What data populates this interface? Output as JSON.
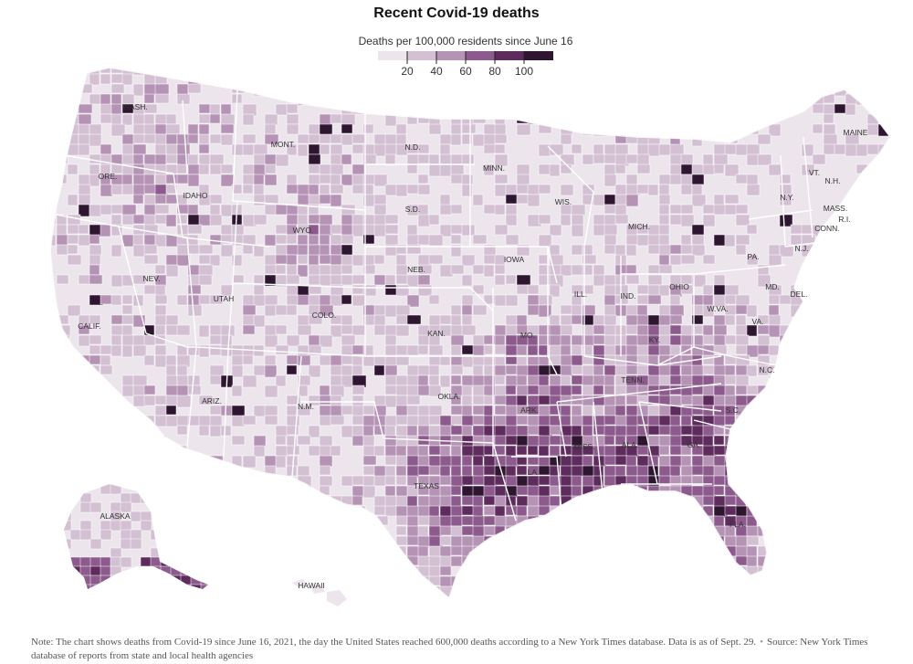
{
  "title": "Recent Covid-19 deaths",
  "legend": {
    "title": "Deaths per 100,000 residents since June 16",
    "ticks": [
      "20",
      "40",
      "60",
      "80",
      "100"
    ],
    "colors": [
      "#ece5ec",
      "#d3c1d3",
      "#b593b5",
      "#8c5a8c",
      "#5e2c5c",
      "#2e1530"
    ]
  },
  "palette": {
    "background": "#ffffff",
    "border": "#ffffff",
    "shade_levels": [
      "#ece5ec",
      "#d3c1d3",
      "#b593b5",
      "#8c5a8c",
      "#5e2c5c",
      "#2e1530"
    ]
  },
  "state_labels": [
    "WASH.",
    "ORE.",
    "CALIF.",
    "NEV.",
    "IDAHO",
    "MONT.",
    "WYO.",
    "UTAH",
    "ARIZ.",
    "COLO.",
    "N.M.",
    "N.D.",
    "S.D.",
    "NEB.",
    "KAN.",
    "OKLA.",
    "TEXAS",
    "MINN.",
    "IOWA",
    "MO.",
    "ARK.",
    "LA.",
    "WIS.",
    "ILL.",
    "MICH.",
    "IND.",
    "OHIO",
    "KY.",
    "TENN.",
    "MISS.",
    "ALA.",
    "GA.",
    "FLA.",
    "S.C.",
    "N.C.",
    "VA.",
    "W.VA.",
    "PA.",
    "N.Y.",
    "MAINE",
    "VT.",
    "N.H.",
    "MASS.",
    "R.I.",
    "CONN.",
    "N.J.",
    "DEL.",
    "MD.",
    "ALASKA",
    "HAWAII"
  ],
  "note": {
    "text": "Note: The chart shows deaths from Covid-19 since June 16, 2021, the day the United States reached 600,000 deaths according to a New York Times database. Data is as of Sept. 29.",
    "source": "Source: New York Times database of reports from state and local health agencies"
  }
}
